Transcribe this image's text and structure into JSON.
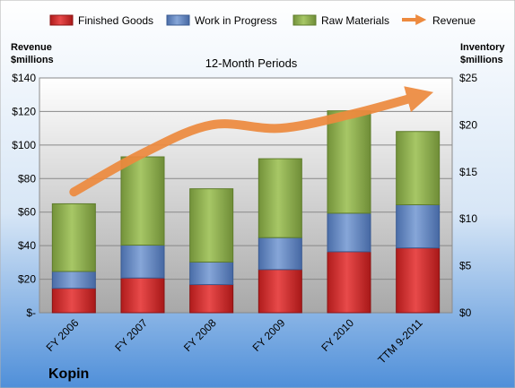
{
  "chart_data": {
    "type": "bar",
    "stacked": true,
    "subtitle": "12-Month Periods",
    "company": "Kopin",
    "categories": [
      "FY 2006",
      "FY 2007",
      "FY 2008",
      "FY 2009",
      "FY 2010",
      "TTM 9-2011"
    ],
    "series": [
      {
        "name": "Finished Goods",
        "axis": "right",
        "color": "#d42b2b",
        "values": [
          2.6,
          3.7,
          3.0,
          4.6,
          6.5,
          6.9
        ]
      },
      {
        "name": "Work in Progress",
        "axis": "right",
        "color": "#5f84c2",
        "values": [
          1.8,
          3.5,
          2.4,
          3.4,
          4.1,
          4.6
        ]
      },
      {
        "name": "Raw Materials",
        "axis": "right",
        "color": "#8fb04e",
        "values": [
          7.2,
          9.4,
          7.8,
          8.4,
          10.9,
          7.8
        ]
      }
    ],
    "line_series": {
      "name": "Revenue",
      "axis": "left",
      "color": "#ed8a3e",
      "values": [
        72,
        95,
        112,
        110,
        118,
        129
      ]
    },
    "left_axis": {
      "label_line1": "Revenue",
      "label_line2": "$millions",
      "ticks": [
        "$-",
        "$20",
        "$40",
        "$60",
        "$80",
        "$100",
        "$120",
        "$140"
      ],
      "ylim": [
        0,
        140
      ]
    },
    "right_axis": {
      "label_line1": "Inventory",
      "label_line2": "$millions",
      "ticks": [
        "$0",
        "$5",
        "$10",
        "$15",
        "$20",
        "$25"
      ],
      "ylim": [
        0,
        25
      ]
    },
    "legend_position": "top",
    "grid": true
  }
}
